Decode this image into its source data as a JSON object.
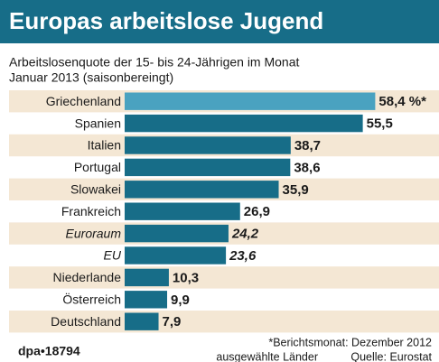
{
  "chart_data": {
    "type": "barh",
    "title": "Europas arbeitslose Jugend",
    "subtitle": [
      "Arbeitslosenquote der 15- bis 24-Jährigen im Monat",
      "Januar 2013 (saisonbereingt)"
    ],
    "categories": [
      "Griechenland",
      "Spanien",
      "Italien",
      "Portugal",
      "Slowakei",
      "Frankreich",
      "Euroraum",
      "EU",
      "Niederlande",
      "Österreich",
      "Deutschland"
    ],
    "values": [
      58.4,
      55.5,
      38.7,
      38.6,
      35.9,
      26.9,
      24.2,
      23.6,
      10.3,
      9.9,
      7.9
    ],
    "value_labels": [
      "58,4 %*",
      "55,5",
      "38,7",
      "38,6",
      "35,9",
      "26,9",
      "24,2",
      "23,6",
      "10,3",
      "9,9",
      "7,9"
    ],
    "colors": [
      "#4aa2c0",
      "#176d88",
      "#176d88",
      "#176d88",
      "#176d88",
      "#176d88",
      "#176d88",
      "#176d88",
      "#176d88",
      "#176d88",
      "#176d88"
    ],
    "italic_categories": [
      "Euroraum",
      "EU"
    ],
    "xlim": [
      0,
      60
    ],
    "footnotes": [
      "*Berichtsmonat: Dezember 2012",
      "ausgewählte Länder",
      "Quelle: Eurostat"
    ],
    "credit": "dpa•18794"
  }
}
